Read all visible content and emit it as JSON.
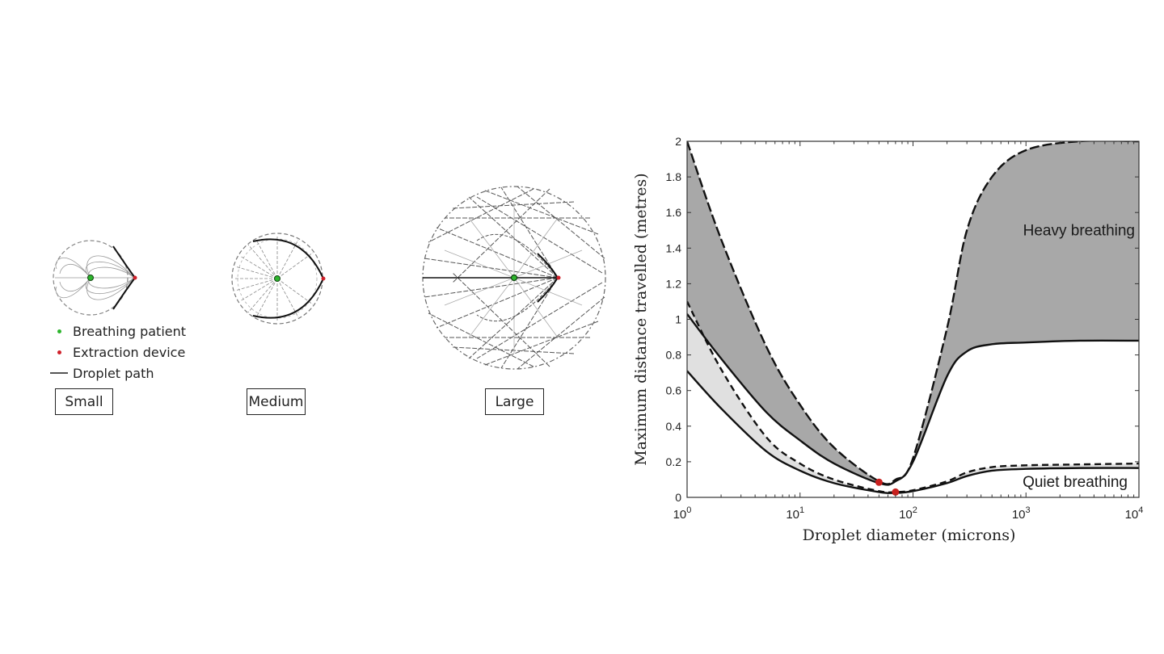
{
  "left_figure": {
    "legend": [
      {
        "label": "Breathing patient",
        "color": "#2db52d",
        "type": "dot"
      },
      {
        "label": "Extraction device",
        "color": "#d0202a",
        "type": "dot"
      },
      {
        "label": "Droplet path",
        "color": "#555555",
        "type": "line"
      }
    ],
    "room_labels": {
      "small": "Small",
      "medium": "Medium",
      "large": "Large"
    }
  },
  "chart_data": {
    "type": "area",
    "title": "",
    "xlabel": "Droplet diameter (microns)",
    "ylabel": "Maximum distance travelled (metres)",
    "xscale": "log",
    "xlim": [
      1,
      10000
    ],
    "ylim": [
      0,
      2
    ],
    "xticks": [
      "10^0",
      "10^1",
      "10^2",
      "10^3",
      "10^4"
    ],
    "yticks": [
      "0",
      "0.2",
      "0.4",
      "0.6",
      "0.8",
      "1",
      "1.2",
      "1.4",
      "1.6",
      "1.8",
      "2"
    ],
    "x": [
      1,
      2,
      5,
      10,
      20,
      50,
      70,
      100,
      200,
      300,
      500,
      1000,
      3000,
      10000
    ],
    "series": [
      {
        "name": "Heavy breathing (upper, dashed)",
        "style": "dashed",
        "values": [
          2.05,
          1.45,
          0.85,
          0.52,
          0.28,
          0.09,
          0.1,
          0.22,
          0.95,
          1.5,
          1.8,
          1.95,
          2.0,
          2.0
        ]
      },
      {
        "name": "Heavy breathing (lower, solid)",
        "style": "solid",
        "values": [
          1.03,
          0.78,
          0.48,
          0.32,
          0.19,
          0.08,
          0.09,
          0.2,
          0.68,
          0.82,
          0.86,
          0.87,
          0.88,
          0.88
        ]
      },
      {
        "name": "Quiet breathing (upper, dashed)",
        "style": "dashed",
        "values": [
          1.1,
          0.72,
          0.34,
          0.19,
          0.1,
          0.035,
          0.03,
          0.04,
          0.09,
          0.14,
          0.17,
          0.18,
          0.185,
          0.19
        ]
      },
      {
        "name": "Quiet breathing (lower, solid)",
        "style": "solid",
        "values": [
          0.71,
          0.5,
          0.26,
          0.15,
          0.08,
          0.03,
          0.025,
          0.035,
          0.08,
          0.12,
          0.15,
          0.16,
          0.165,
          0.165
        ]
      }
    ],
    "shaded_regions": [
      {
        "name": "Heavy breathing",
        "color": "#a8a8a8"
      },
      {
        "name": "Quiet breathing",
        "color": "#e0e0e0"
      }
    ],
    "minimum_markers": [
      {
        "series": "Heavy breathing",
        "x": 50,
        "y": 0.085,
        "color": "#c8201e"
      },
      {
        "series": "Quiet breathing",
        "x": 70,
        "y": 0.03,
        "color": "#c8201e"
      }
    ],
    "annotations": [
      {
        "text": "Heavy breathing",
        "x": 2000,
        "y": 1.48
      },
      {
        "text": "Quiet breathing",
        "x": 2000,
        "y": 0.1
      }
    ],
    "grid": false,
    "legend_position": "none"
  }
}
